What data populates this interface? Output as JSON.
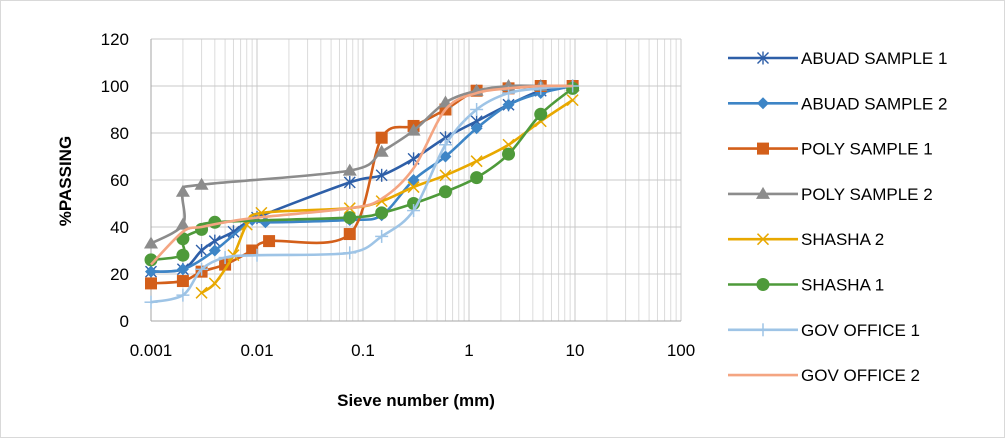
{
  "chart_data": {
    "type": "line",
    "title": "",
    "xlabel": "Sieve number (mm)",
    "ylabel": "%PASSING",
    "x_scale": "log",
    "xlim": [
      0.001,
      100
    ],
    "ylim": [
      0,
      120
    ],
    "x_ticks": [
      "0.001",
      "0.01",
      "0.1",
      "1",
      "10",
      "100"
    ],
    "y_ticks": [
      "0",
      "20",
      "40",
      "60",
      "80",
      "100",
      "120"
    ],
    "grid": true,
    "legend_position": "right",
    "series": [
      {
        "name": "ABUAD SAMPLE 1",
        "color": "#2e5fa8",
        "marker": "asterisk",
        "x": [
          0.001,
          0.002,
          0.003,
          0.004,
          0.006,
          0.01,
          0.075,
          0.15,
          0.3,
          0.6,
          1.18,
          2.36,
          4.75,
          9.5
        ],
        "y": [
          21,
          22,
          30,
          34,
          38,
          44,
          59,
          62,
          69,
          78,
          85,
          92,
          98,
          100
        ]
      },
      {
        "name": "ABUAD SAMPLE 2",
        "color": "#3d85c6",
        "marker": "diamond",
        "x": [
          0.001,
          0.002,
          0.004,
          0.009,
          0.012,
          0.075,
          0.15,
          0.3,
          0.6,
          1.18,
          2.36,
          4.75,
          9.5
        ],
        "y": [
          21,
          22,
          30,
          43,
          42,
          43,
          45,
          60,
          70,
          82,
          92,
          97,
          100
        ]
      },
      {
        "name": "POLY SAMPLE 1",
        "color": "#d35f1a",
        "marker": "square",
        "x": [
          0.001,
          0.002,
          0.003,
          0.005,
          0.009,
          0.013,
          0.075,
          0.15,
          0.3,
          0.6,
          1.18,
          2.36,
          4.75,
          9.5
        ],
        "y": [
          16,
          17,
          21,
          24,
          30,
          34,
          37,
          78,
          83,
          90,
          98,
          99,
          100,
          100
        ]
      },
      {
        "name": "POLY SAMPLE 2",
        "color": "#8c8c8c",
        "marker": "triangle",
        "x": [
          0.001,
          0.002,
          0.002,
          0.003,
          0.075,
          0.15,
          0.3,
          0.6,
          1.18,
          2.36,
          4.75,
          9.5
        ],
        "y": [
          33,
          41,
          55,
          58,
          64,
          72,
          81,
          93,
          98,
          100,
          100,
          100
        ]
      },
      {
        "name": "SHASHA 2",
        "color": "#e8a800",
        "marker": "x",
        "x": [
          0.003,
          0.004,
          0.006,
          0.008,
          0.011,
          0.075,
          0.15,
          0.3,
          0.6,
          1.18,
          2.36,
          4.75,
          9.5
        ],
        "y": [
          12,
          16,
          28,
          41,
          46,
          48,
          51,
          57,
          62,
          68,
          75,
          85,
          94
        ]
      },
      {
        "name": "SHASHA 1",
        "color": "#4e9a3a",
        "marker": "circle",
        "x": [
          0.001,
          0.002,
          0.002,
          0.003,
          0.004,
          0.075,
          0.15,
          0.3,
          0.6,
          1.18,
          2.36,
          4.75,
          9.5
        ],
        "y": [
          26,
          28,
          35,
          39,
          42,
          44,
          46,
          50,
          55,
          61,
          71,
          88,
          99
        ]
      },
      {
        "name": "GOV OFFICE 1",
        "color": "#9ec4e6",
        "marker": "plus",
        "x": [
          0.001,
          0.002,
          0.003,
          0.005,
          0.01,
          0.075,
          0.15,
          0.3,
          0.6,
          1.18,
          2.36,
          4.75,
          9.5
        ],
        "y": [
          8,
          11,
          22,
          27,
          28,
          29,
          36,
          47,
          75,
          90,
          97,
          99,
          100
        ]
      },
      {
        "name": "GOV OFFICE 2",
        "color": "#f4a582",
        "marker": "line",
        "x": [
          0.001,
          0.002,
          0.003,
          0.005,
          0.01,
          0.075,
          0.15,
          0.3,
          0.6,
          1.18,
          2.36,
          4.75,
          9.5
        ],
        "y": [
          24,
          38,
          40,
          42,
          44,
          48,
          52,
          65,
          90,
          97,
          99,
          100,
          100
        ]
      }
    ]
  }
}
